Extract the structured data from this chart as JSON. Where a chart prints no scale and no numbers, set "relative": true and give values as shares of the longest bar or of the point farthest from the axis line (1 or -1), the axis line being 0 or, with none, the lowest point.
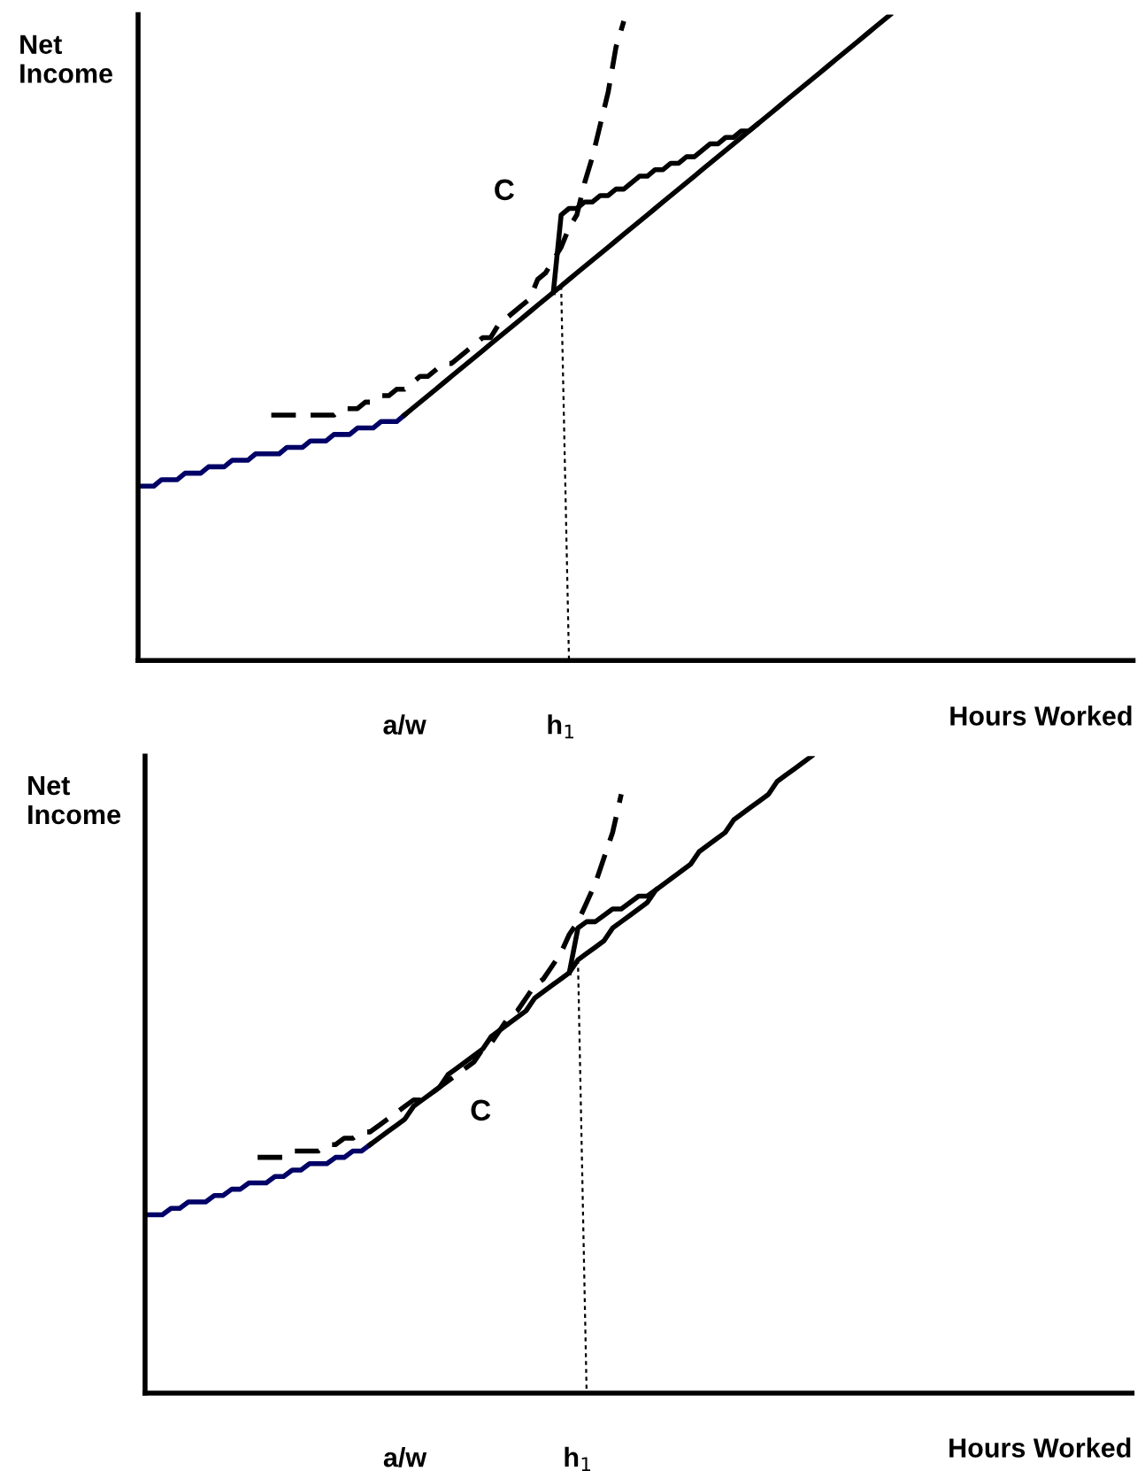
{
  "chart_data": [
    {
      "type": "line",
      "relative": true,
      "ylabel": "Net Income",
      "xlabel": "Hours Worked",
      "annotations": [
        "C"
      ],
      "categories": [
        null,
        null,
        null,
        null,
        null,
        null,
        null,
        null,
        null,
        null,
        null,
        null,
        null,
        null,
        null,
        null,
        null,
        null,
        null,
        null,
        null,
        null,
        null,
        null,
        null,
        null,
        null,
        null,
        null,
        null,
        null,
        null,
        null,
        null,
        "a/w",
        null,
        null,
        null,
        null,
        null,
        null,
        null,
        null,
        null,
        null,
        null,
        null,
        null,
        null,
        null,
        null,
        null,
        null,
        null,
        "h$_{1}$",
        null,
        null,
        null,
        null,
        null,
        null,
        null,
        null,
        null,
        null,
        null,
        null,
        null,
        null,
        null,
        null,
        null,
        null,
        null,
        null,
        null,
        null,
        null,
        null,
        null,
        null,
        null,
        null,
        null,
        null,
        null,
        null,
        null,
        null,
        null,
        null,
        null,
        null,
        null,
        null,
        null,
        null,
        null,
        null,
        null,
        null,
        null,
        null,
        null,
        null,
        null,
        null,
        null,
        null,
        null,
        null,
        null,
        null,
        null,
        null,
        null,
        null,
        null,
        null,
        null,
        null,
        null,
        null,
        null,
        null,
        null,
        null,
        null
      ],
      "series": [
        {
          "color": "#000066",
          "line_style": "solid",
          "values": [
            0.27,
            0.27,
            0.27,
            0.28,
            0.28,
            0.28,
            0.29,
            0.29,
            0.29,
            0.3,
            0.3,
            0.3,
            0.31,
            0.31,
            0.31,
            0.32,
            0.32,
            0.32,
            0.32,
            0.33,
            0.33,
            0.33,
            0.34,
            0.34,
            0.34,
            0.35,
            0.35,
            0.35,
            0.36,
            0.36,
            0.36,
            0.37,
            0.37,
            0.37,
            0.38,
            null,
            null,
            null,
            null,
            null,
            null,
            null,
            null,
            null,
            null,
            null,
            null,
            null,
            null,
            null,
            null,
            null,
            null,
            null,
            null,
            null,
            null,
            null,
            null,
            null,
            null,
            null,
            null,
            null,
            null,
            null,
            null,
            null,
            null,
            null,
            null,
            null,
            null,
            null,
            null,
            null,
            null,
            null,
            null,
            null,
            null,
            null,
            null,
            null,
            null,
            null,
            null,
            null,
            null,
            null,
            null,
            null,
            null,
            null,
            null,
            null,
            null,
            null,
            null,
            null,
            null,
            null,
            null,
            null,
            null,
            null,
            null,
            null,
            null,
            null,
            null,
            null,
            null,
            null,
            null,
            null,
            null,
            null,
            null,
            null,
            null,
            null,
            null,
            null,
            null,
            null,
            null,
            null
          ]
        },
        {
          "color": "#000000",
          "line_style": "solid",
          "values": [
            null,
            null,
            null,
            null,
            null,
            null,
            null,
            null,
            null,
            null,
            null,
            null,
            null,
            null,
            null,
            null,
            null,
            null,
            null,
            null,
            null,
            null,
            null,
            null,
            null,
            null,
            null,
            null,
            null,
            null,
            null,
            null,
            null,
            null,
            0.38,
            0.39,
            0.4,
            0.41,
            0.42,
            0.43,
            0.44,
            0.45,
            0.46,
            0.47,
            0.48,
            0.49,
            0.5,
            0.51,
            0.52,
            0.53,
            0.54,
            0.55,
            0.56,
            0.57,
            0.58,
            0.59,
            0.6,
            0.61,
            0.62,
            0.63,
            0.64,
            0.65,
            0.66,
            0.67,
            0.68,
            0.69,
            0.7,
            0.71,
            0.72,
            0.73,
            0.74,
            0.75,
            0.76,
            0.77,
            0.78,
            0.79,
            0.8,
            0.81,
            0.82,
            0.83,
            0.84,
            0.85,
            0.86,
            0.87,
            0.88,
            0.89,
            0.9,
            0.91,
            0.92,
            0.93,
            0.94,
            0.95,
            0.96,
            0.97,
            0.98,
            0.99,
            1.0,
            null,
            null,
            null,
            null,
            null,
            null,
            null,
            null,
            null,
            null,
            null,
            null,
            null,
            null,
            null,
            null,
            null,
            null,
            null,
            null,
            null,
            null,
            null,
            null,
            null,
            null,
            null,
            null,
            null,
            null,
            null
          ]
        },
        {
          "color": "#000000",
          "line_style": "dashed",
          "values": [
            null,
            null,
            null,
            null,
            null,
            null,
            null,
            null,
            null,
            null,
            null,
            null,
            null,
            null,
            null,
            null,
            null,
            0.38,
            0.38,
            0.38,
            0.38,
            0.38,
            0.38,
            0.38,
            0.38,
            0.38,
            0.39,
            0.39,
            0.39,
            0.4,
            0.4,
            0.41,
            0.41,
            0.42,
            0.42,
            0.43,
            0.44,
            0.44,
            0.45,
            0.46,
            0.46,
            0.47,
            0.48,
            0.49,
            0.5,
            0.5,
            0.52,
            0.53,
            0.54,
            0.55,
            0.56,
            0.59,
            0.6,
            0.62,
            0.64,
            0.67,
            0.69,
            0.74,
            0.78,
            0.83,
            0.88,
            0.95,
            0.99,
            null,
            null,
            null,
            null,
            null,
            null,
            null,
            null,
            null,
            null,
            null,
            null,
            null,
            null,
            null,
            null,
            null,
            null,
            null,
            null,
            null,
            null,
            null,
            null,
            null,
            null,
            null,
            null,
            null,
            null,
            null,
            null,
            null,
            null,
            null,
            null,
            null,
            null,
            null,
            null,
            null,
            null,
            null,
            null,
            null,
            null,
            null,
            null,
            null,
            null,
            null,
            null,
            null,
            null,
            null,
            null,
            null,
            null,
            null,
            null,
            null,
            null,
            null,
            null,
            null
          ]
        },
        {
          "color": "#000000",
          "line_style": "solid",
          "values": [
            null,
            null,
            null,
            null,
            null,
            null,
            null,
            null,
            null,
            null,
            null,
            null,
            null,
            null,
            null,
            null,
            null,
            null,
            null,
            null,
            null,
            null,
            null,
            null,
            null,
            null,
            null,
            null,
            null,
            null,
            null,
            null,
            null,
            null,
            null,
            null,
            null,
            null,
            null,
            null,
            null,
            null,
            null,
            null,
            null,
            null,
            null,
            null,
            null,
            null,
            null,
            null,
            null,
            0.57,
            0.69,
            0.7,
            0.7,
            0.71,
            0.71,
            0.72,
            0.72,
            0.73,
            0.73,
            0.74,
            0.75,
            0.75,
            0.76,
            0.76,
            0.77,
            0.77,
            0.78,
            0.78,
            0.79,
            0.8,
            0.8,
            0.81,
            0.81,
            0.82,
            0.82,
            0.83,
            null,
            null,
            null,
            null,
            null,
            null,
            null,
            null,
            null,
            null,
            null,
            null,
            null,
            null,
            null,
            null,
            null,
            null,
            null,
            null,
            null,
            null,
            null,
            null,
            null,
            null,
            null,
            null,
            null,
            null,
            null,
            null,
            null,
            null,
            null,
            null,
            null,
            null,
            null,
            null,
            null,
            null,
            null,
            null,
            null,
            null,
            null,
            null
          ]
        },
        {
          "color": "#000000",
          "line_style": "dotted",
          "values": [
            null,
            null,
            null,
            null,
            null,
            null,
            null,
            null,
            null,
            null,
            null,
            null,
            null,
            null,
            null,
            null,
            null,
            null,
            null,
            null,
            null,
            null,
            null,
            null,
            null,
            null,
            null,
            null,
            null,
            null,
            null,
            null,
            null,
            null,
            null,
            null,
            null,
            null,
            null,
            null,
            null,
            null,
            null,
            null,
            null,
            null,
            null,
            null,
            null,
            null,
            null,
            null,
            null,
            null,
            0.58,
            0,
            null,
            null,
            null,
            null,
            null,
            null,
            null,
            null,
            null,
            null,
            null,
            null,
            null,
            null,
            null,
            null,
            null,
            null,
            null,
            null,
            null,
            null,
            null,
            null,
            null,
            null,
            null,
            null,
            null,
            null,
            null,
            null,
            null,
            null,
            null,
            null,
            null,
            null,
            null,
            null,
            null,
            null,
            null,
            null,
            null,
            null,
            null,
            null,
            null,
            null,
            null,
            null,
            null,
            null,
            null,
            null,
            null,
            null,
            null,
            null,
            null,
            null,
            null,
            null,
            null,
            null,
            null,
            null,
            null,
            null,
            null,
            null
          ]
        }
      ]
    },
    {
      "type": "line",
      "relative": true,
      "ylabel": "Net Income",
      "xlabel": "Hours Worked",
      "annotations": [
        "C"
      ],
      "categories": [
        null,
        null,
        null,
        null,
        null,
        null,
        null,
        null,
        null,
        null,
        null,
        null,
        null,
        null,
        null,
        null,
        null,
        null,
        null,
        null,
        null,
        null,
        null,
        null,
        null,
        null,
        null,
        null,
        null,
        null,
        "a/w",
        null,
        null,
        null,
        null,
        null,
        null,
        null,
        null,
        null,
        null,
        null,
        null,
        null,
        null,
        null,
        null,
        null,
        null,
        null,
        "h$_{1}$",
        null,
        null,
        null,
        null,
        null,
        null,
        null,
        null,
        null,
        null,
        null,
        null,
        null,
        null,
        null,
        null,
        null,
        null,
        null,
        null,
        null,
        null,
        null,
        null,
        null,
        null,
        null,
        null,
        null,
        null,
        null,
        null,
        null,
        null,
        null,
        null,
        null,
        null,
        null,
        null,
        null,
        null,
        null,
        null,
        null,
        null,
        null,
        null,
        null,
        null,
        null,
        null,
        null,
        null,
        null,
        null,
        null,
        null,
        null,
        null,
        null,
        null,
        null,
        null
      ],
      "series": [
        {
          "color": "#000066",
          "line_style": "solid",
          "values": [
            0.28,
            0.28,
            0.28,
            0.29,
            0.29,
            0.3,
            0.3,
            0.3,
            0.31,
            0.31,
            0.32,
            0.32,
            0.33,
            0.33,
            0.33,
            0.34,
            0.34,
            0.35,
            0.35,
            0.36,
            0.36,
            0.36,
            0.37,
            0.37,
            0.38,
            0.38,
            0.39,
            null,
            null,
            null,
            null,
            null,
            null,
            null,
            null,
            null,
            null,
            null,
            null,
            null,
            null,
            null,
            null,
            null,
            null,
            null,
            null,
            null,
            null,
            null,
            null,
            null,
            null,
            null,
            null,
            null,
            null,
            null,
            null,
            null,
            null,
            null,
            null,
            null,
            null,
            null,
            null,
            null,
            null,
            null,
            null,
            null,
            null,
            null,
            null,
            null,
            null,
            null,
            null,
            null,
            null,
            null,
            null,
            null,
            null,
            null,
            null,
            null,
            null,
            null,
            null,
            null,
            null,
            null,
            null,
            null,
            null,
            null,
            null,
            null,
            null,
            null,
            null,
            null,
            null,
            null,
            null,
            null,
            null,
            null,
            null,
            null,
            null,
            null,
            null
          ]
        },
        {
          "color": "#000000",
          "line_style": "solid",
          "values": [
            null,
            null,
            null,
            null,
            null,
            null,
            null,
            null,
            null,
            null,
            null,
            null,
            null,
            null,
            null,
            null,
            null,
            null,
            null,
            null,
            null,
            null,
            null,
            null,
            null,
            null,
            0.39,
            0.4,
            0.41,
            0.42,
            0.43,
            0.45,
            0.46,
            0.47,
            0.48,
            0.5,
            0.51,
            0.52,
            0.53,
            0.54,
            0.56,
            0.57,
            0.58,
            0.59,
            0.6,
            0.62,
            0.63,
            0.64,
            0.65,
            0.66,
            0.68,
            0.69,
            0.7,
            0.71,
            0.73,
            0.74,
            0.75,
            0.76,
            0.77,
            0.79,
            0.8,
            0.81,
            0.82,
            0.83,
            0.85,
            0.86,
            0.87,
            0.88,
            0.9,
            0.91,
            0.92,
            0.93,
            0.94,
            0.96,
            0.97,
            0.98,
            0.99,
            1.0,
            null,
            null,
            null,
            null,
            null,
            null,
            null,
            null,
            null,
            null,
            null,
            null,
            null,
            null,
            null,
            null,
            null,
            null,
            null,
            null,
            null,
            null,
            null,
            null,
            null,
            null,
            null,
            null,
            null,
            null,
            null,
            null,
            null,
            null,
            null,
            null,
            null
          ]
        },
        {
          "color": "#000000",
          "line_style": "dashed",
          "values": [
            null,
            null,
            null,
            null,
            null,
            null,
            null,
            null,
            null,
            null,
            null,
            null,
            null,
            0.37,
            0.37,
            0.37,
            0.37,
            0.38,
            0.38,
            0.38,
            0.38,
            0.39,
            0.39,
            0.4,
            0.4,
            0.41,
            0.41,
            0.42,
            0.43,
            0.44,
            0.45,
            0.46,
            0.46,
            0.47,
            0.48,
            0.49,
            0.5,
            0.51,
            0.52,
            0.54,
            0.55,
            0.57,
            0.59,
            0.6,
            0.62,
            0.64,
            0.65,
            0.67,
            0.69,
            0.72,
            0.74,
            0.77,
            0.8,
            0.84,
            0.88,
            0.94,
            null,
            null,
            null,
            null,
            null,
            null,
            null,
            null,
            null,
            null,
            null,
            null,
            null,
            null,
            null,
            null,
            null,
            null,
            null,
            null,
            null,
            null,
            null,
            null,
            null,
            null,
            null,
            null,
            null,
            null,
            null,
            null,
            null,
            null,
            null,
            null,
            null,
            null,
            null,
            null,
            null,
            null,
            null,
            null,
            null,
            null,
            null,
            null,
            null,
            null,
            null,
            null,
            null,
            null,
            null,
            null,
            null,
            null,
            null
          ]
        },
        {
          "color": "#000000",
          "line_style": "solid",
          "values": [
            null,
            null,
            null,
            null,
            null,
            null,
            null,
            null,
            null,
            null,
            null,
            null,
            null,
            null,
            null,
            null,
            null,
            null,
            null,
            null,
            null,
            null,
            null,
            null,
            null,
            null,
            null,
            null,
            null,
            null,
            null,
            null,
            null,
            null,
            null,
            null,
            null,
            null,
            null,
            null,
            null,
            null,
            null,
            null,
            null,
            null,
            null,
            null,
            null,
            0.66,
            0.73,
            0.74,
            0.74,
            0.75,
            0.76,
            0.76,
            0.77,
            0.78,
            0.78,
            0.79,
            null,
            null,
            null,
            null,
            null,
            null,
            null,
            null,
            null,
            null,
            null,
            null,
            null,
            null,
            null,
            null,
            null,
            null,
            null,
            null,
            null,
            null,
            null,
            null,
            null,
            null,
            null,
            null,
            null,
            null,
            null,
            null,
            null,
            null,
            null,
            null,
            null,
            null,
            null,
            null,
            null,
            null,
            null,
            null,
            null,
            null,
            null,
            null,
            null,
            null,
            null,
            null,
            null,
            null,
            null
          ]
        },
        {
          "color": "#000000",
          "line_style": "dotted",
          "values": [
            null,
            null,
            null,
            null,
            null,
            null,
            null,
            null,
            null,
            null,
            null,
            null,
            null,
            null,
            null,
            null,
            null,
            null,
            null,
            null,
            null,
            null,
            null,
            null,
            null,
            null,
            null,
            null,
            null,
            null,
            null,
            null,
            null,
            null,
            null,
            null,
            null,
            null,
            null,
            null,
            null,
            null,
            null,
            null,
            null,
            null,
            null,
            null,
            null,
            null,
            0.68,
            0,
            null,
            null,
            null,
            null,
            null,
            null,
            null,
            null,
            null,
            null,
            null,
            null,
            null,
            null,
            null,
            null,
            null,
            null,
            null,
            null,
            null,
            null,
            null,
            null,
            null,
            null,
            null,
            null,
            null,
            null,
            null,
            null,
            null,
            null,
            null,
            null,
            null,
            null,
            null,
            null,
            null,
            null,
            null,
            null,
            null,
            null,
            null,
            null,
            null,
            null,
            null,
            null,
            null,
            null,
            null,
            null,
            null,
            null,
            null,
            null,
            null,
            null,
            null
          ]
        }
      ]
    }
  ]
}
